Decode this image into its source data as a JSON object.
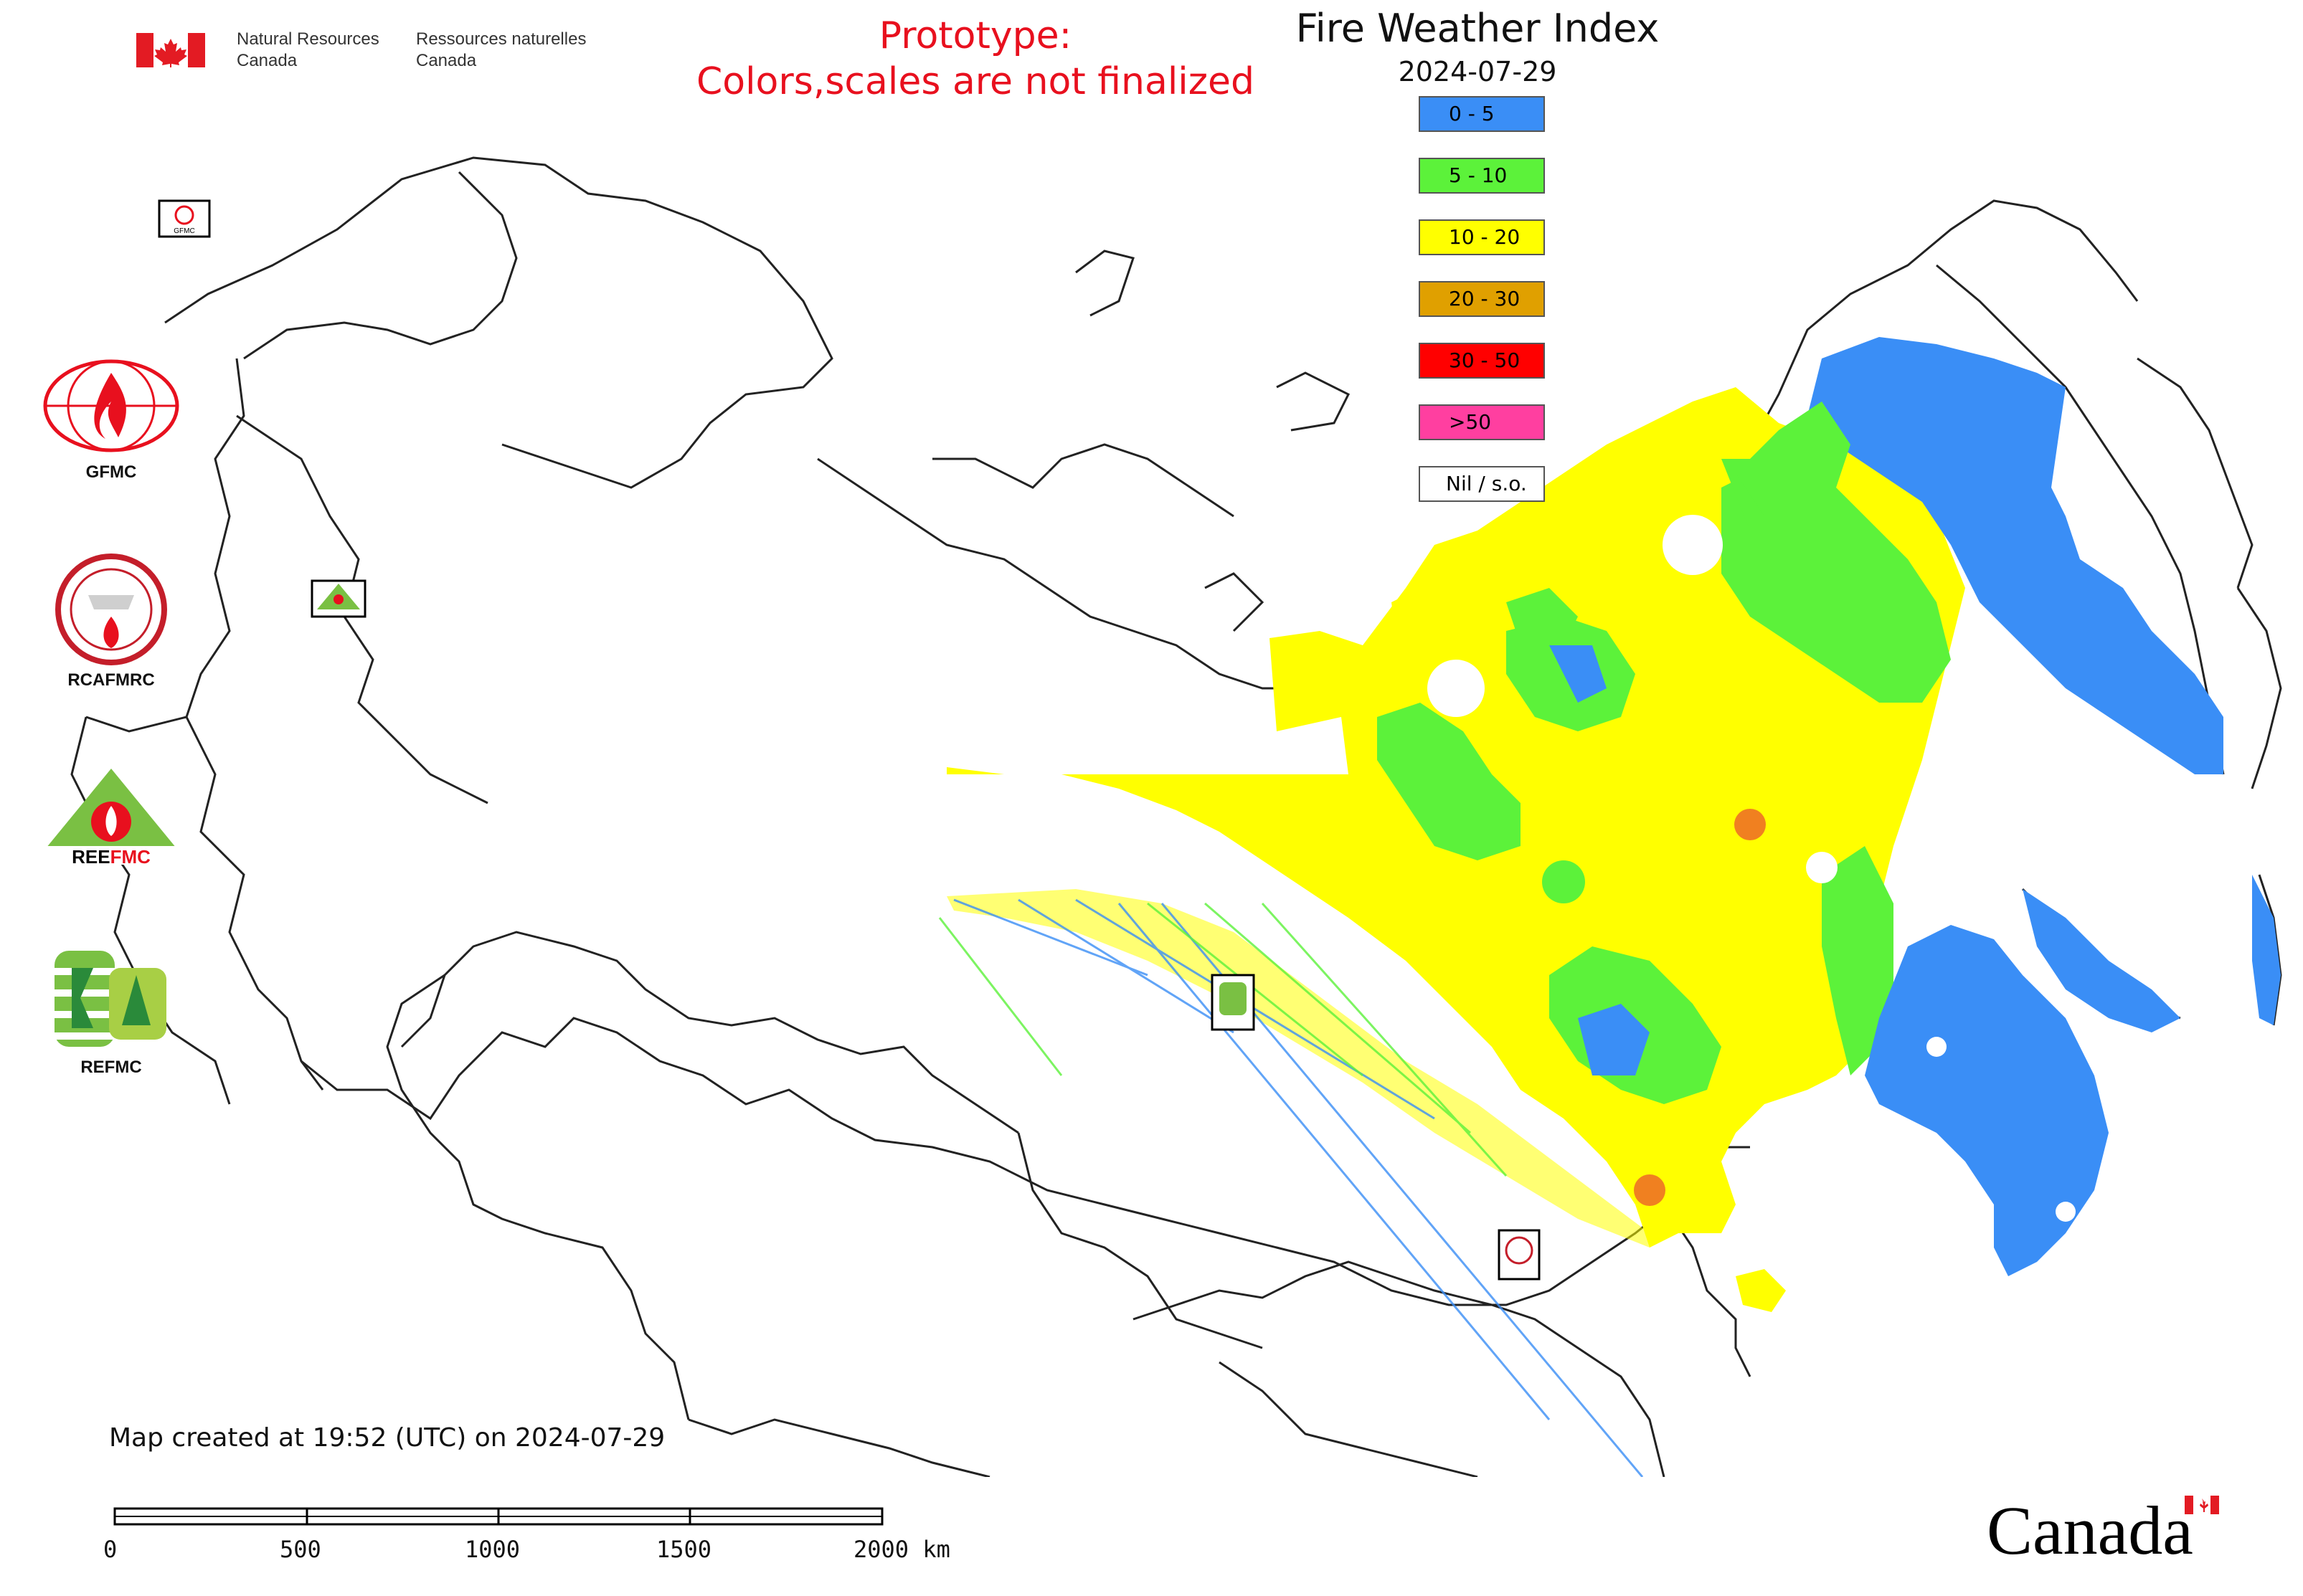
{
  "header": {
    "agency_en": [
      "Natural Resources",
      "Canada"
    ],
    "agency_fr": [
      "Ressources naturelles",
      "Canada"
    ],
    "prototype_line1": "Prototype:",
    "prototype_line2": "Colors,scales are not finalized",
    "title": "Fire Weather Index",
    "date": "2024-07-29"
  },
  "legend": [
    {
      "label": "0 - 5",
      "color": "#3a8ef6"
    },
    {
      "label": "5 - 10",
      "color": "#5cf23a"
    },
    {
      "label": "10 - 20",
      "color": "#ffff00"
    },
    {
      "label": "20 - 30",
      "color": "#e0a000"
    },
    {
      "label": "30 - 50",
      "color": "#ff0000"
    },
    {
      "label": ">50",
      "color": "#ff3fa0"
    },
    {
      "label": "Nil / s.o.",
      "color": "#ffffff"
    }
  ],
  "logos": [
    {
      "label": "GFMC",
      "icon": "gfmc-logo-icon"
    },
    {
      "label": "RCAFMRC",
      "icon": "rcafmrc-logo-icon"
    },
    {
      "label": "",
      "icon": "reefmc-logo-icon",
      "lettering": "REEFMC"
    },
    {
      "label": "REFMC",
      "icon": "refmc-logo-icon"
    }
  ],
  "map_markers": [
    "GFMC",
    "REEFMC",
    "REFMC",
    "RCAFMRC"
  ],
  "footer": {
    "created": "Map created at 19:52 (UTC) on 2024-07-29",
    "scale_labels": [
      "0",
      "500",
      "1000",
      "1500",
      "2000 km"
    ],
    "wordmark": "Canada"
  }
}
